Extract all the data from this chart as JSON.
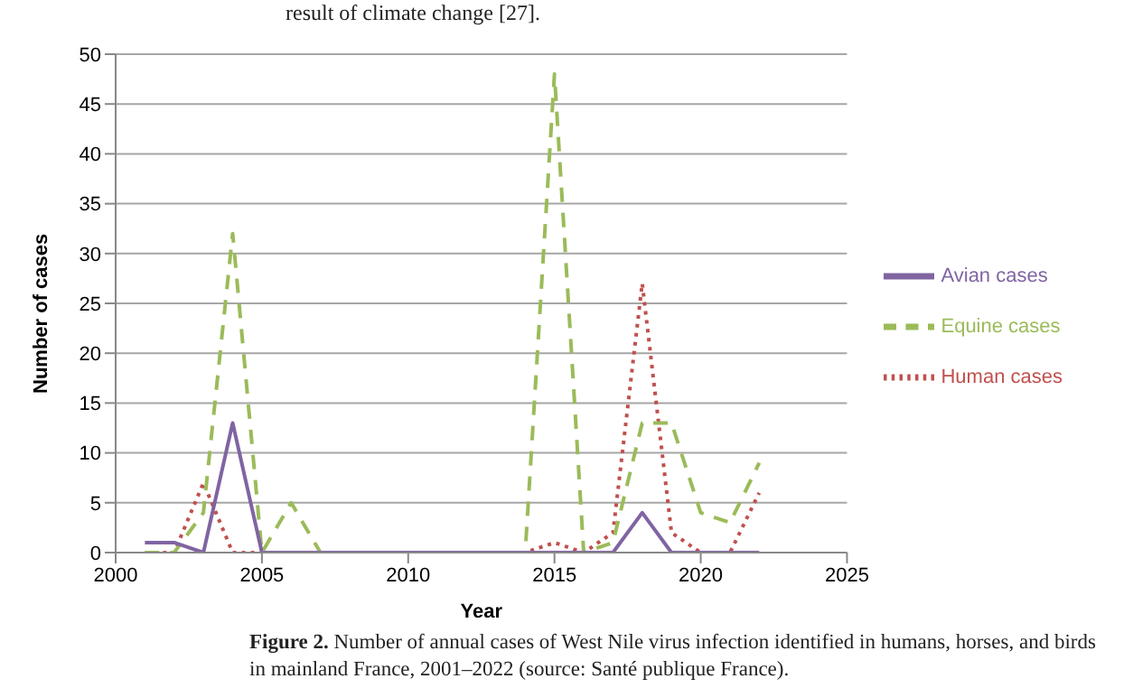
{
  "chart_data": {
    "type": "line",
    "xlabel": "Year",
    "ylabel": "Number of cases",
    "x": [
      2001,
      2002,
      2003,
      2004,
      2005,
      2006,
      2007,
      2008,
      2009,
      2010,
      2011,
      2012,
      2013,
      2014,
      2015,
      2016,
      2017,
      2018,
      2019,
      2020,
      2021,
      2022
    ],
    "series": [
      {
        "name": "Human cases",
        "color": "#c0504d",
        "line_style": "dotted",
        "values": [
          0,
          0,
          7,
          0,
          0,
          0,
          0,
          0,
          0,
          0,
          0,
          0,
          0,
          0,
          1,
          0,
          2,
          27,
          2,
          0,
          0,
          6
        ]
      },
      {
        "name": "Equine cases",
        "color": "#9bbb59",
        "line_style": "dashed",
        "values": [
          0,
          0,
          4,
          32,
          0,
          5,
          0,
          0,
          0,
          0,
          0,
          0,
          0,
          0,
          48,
          0,
          1,
          13,
          13,
          4,
          3,
          9
        ]
      },
      {
        "name": "Avian cases",
        "color": "#8064a2",
        "line_style": "solid",
        "values": [
          1,
          1,
          0,
          13,
          0,
          0,
          0,
          0,
          0,
          0,
          0,
          0,
          0,
          0,
          0,
          0,
          0,
          4,
          0,
          0,
          0,
          0
        ]
      }
    ],
    "xlim": [
      2000,
      2025
    ],
    "xticks": [
      2000,
      2005,
      2010,
      2015,
      2020,
      2025
    ],
    "ylim": [
      0,
      50
    ],
    "yticks": [
      0,
      5,
      10,
      15,
      20,
      25,
      30,
      35,
      40,
      45,
      50
    ],
    "grid": "y",
    "legend": "right",
    "marker": "none",
    "annotations": [
      "result of climate change [27].",
      "Figure 2. Number of annual cases of West Nile virus infection identified in humans, horses, and birds in mainland France, 2001–2022 (source: Santé publique France)."
    ]
  }
}
